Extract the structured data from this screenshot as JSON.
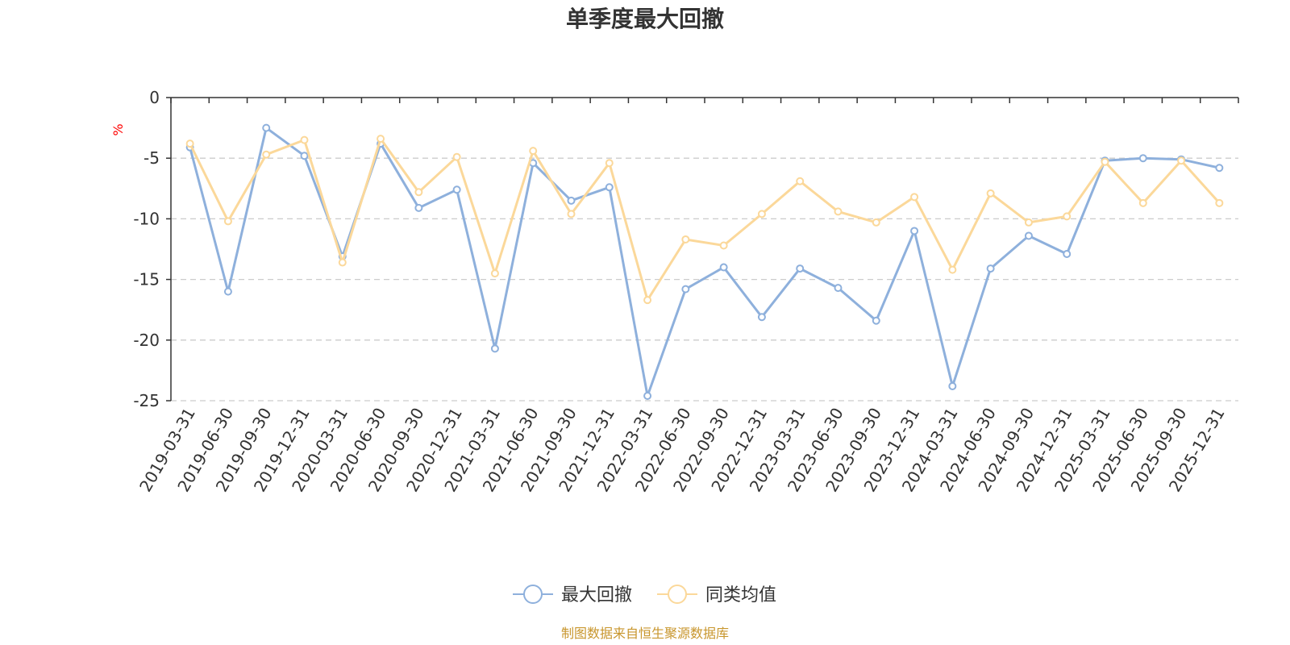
{
  "chart_data": {
    "type": "line",
    "title": "单季度最大回撤",
    "ylabel": "%",
    "xlabel": "",
    "ylim": [
      -25,
      0
    ],
    "yticks": [
      0,
      -5,
      -10,
      -15,
      -20,
      -25
    ],
    "grid": true,
    "legend_position": "bottom-center",
    "source": "制图数据来自恒生聚源数据库",
    "categories": [
      "2019-03-31",
      "2019-06-30",
      "2019-09-30",
      "2019-12-31",
      "2020-03-31",
      "2020-06-30",
      "2020-09-30",
      "2020-12-31",
      "2021-03-31",
      "2021-06-30",
      "2021-09-30",
      "2021-12-31",
      "2022-03-31",
      "2022-06-30",
      "2022-09-30",
      "2022-12-31",
      "2023-03-31",
      "2023-06-30",
      "2023-09-30",
      "2023-12-31",
      "2024-03-31",
      "2024-06-30",
      "2024-09-30",
      "2024-12-31",
      "2025-03-31",
      "2025-06-30",
      "2025-09-30",
      "2025-12-31"
    ],
    "series": [
      {
        "name": "最大回撤",
        "color": "#8eb0dc",
        "values": [
          -4.1,
          -16.0,
          -2.5,
          -4.8,
          -13.1,
          -3.8,
          -9.1,
          -7.6,
          -20.7,
          -5.4,
          -8.5,
          -7.4,
          -24.6,
          -15.8,
          -14.0,
          -18.1,
          -14.1,
          -15.7,
          -18.4,
          -11.0,
          -23.8,
          -14.1,
          -11.4,
          -12.9,
          -5.2,
          -5.0,
          -5.1,
          -5.8
        ]
      },
      {
        "name": "同类均值",
        "color": "#fbd89a",
        "values": [
          -3.8,
          -10.2,
          -4.7,
          -3.5,
          -13.6,
          -3.4,
          -7.8,
          -4.9,
          -14.5,
          -4.4,
          -9.6,
          -5.4,
          -16.7,
          -11.7,
          -12.2,
          -9.6,
          -6.9,
          -9.4,
          -10.3,
          -8.2,
          -14.2,
          -7.9,
          -10.3,
          -9.8,
          -5.3,
          -8.7,
          -5.2,
          -8.7
        ]
      }
    ]
  }
}
